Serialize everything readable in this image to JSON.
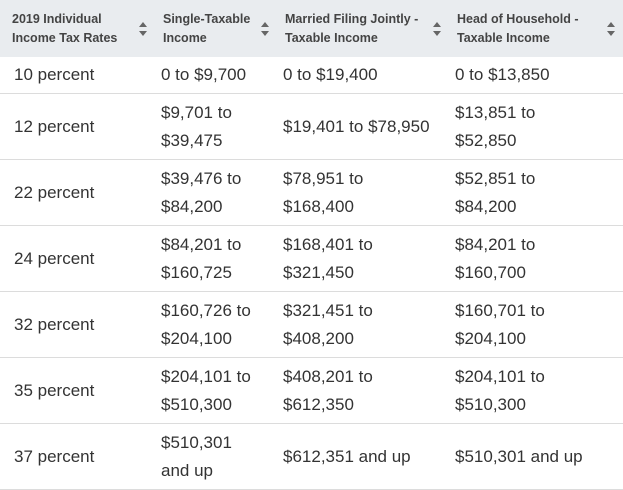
{
  "table": {
    "header": [
      "2019 Individual Income Tax Rates",
      "Single-Taxable Income",
      "Married Filing Jointly - Taxable Income",
      "Head of Household - Taxable Income"
    ],
    "rows": [
      [
        "10 percent",
        "0 to $9,700",
        "0 to $19,400",
        "0 to $13,850"
      ],
      [
        "12 percent",
        "$9,701 to $39,475",
        "$19,401 to $78,950",
        "$13,851 to $52,850"
      ],
      [
        "22 percent",
        "$39,476 to $84,200",
        "$78,951 to $168,400",
        "$52,851 to $84,200"
      ],
      [
        "24 percent",
        "$84,201 to $160,725",
        "$168,401 to $321,450",
        "$84,201 to $160,700"
      ],
      [
        "32 percent",
        "$160,726 to $204,100",
        "$321,451 to $408,200",
        "$160,701 to $204,100"
      ],
      [
        "35 percent",
        "$204,101 to $510,300",
        "$408,201 to $612,350",
        "$204,101 to $510,300"
      ],
      [
        "37 percent",
        "$510,301 and up",
        "$612,351 and up",
        "$510,301 and up"
      ]
    ]
  }
}
